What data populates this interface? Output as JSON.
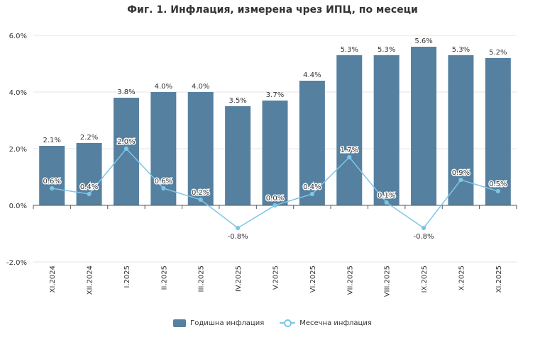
{
  "title": "Фиг. 1. Инфлация, измерена чрез ИПЦ, по месеци",
  "legend": {
    "bar_label": "Годишна инфлация",
    "line_label": "Месечна инфлация"
  },
  "colors": {
    "bar": "#56809f",
    "line": "#7cc6e8",
    "grid": "#e6e6e6",
    "axis": "#555555",
    "text": "#333333"
  },
  "chart_data": {
    "type": "bar",
    "title": "Фиг. 1. Инфлация, измерена чрез ИПЦ, по месеци",
    "categories": [
      "XI.2024",
      "XII.2024",
      "I.2025",
      "II.2025",
      "III.2025",
      "IV.2025",
      "V.2025",
      "VI.2025",
      "VII.2025",
      "VIII.2025",
      "IX.2025",
      "X.2025",
      "XI.2025"
    ],
    "series": [
      {
        "name": "Годишна инфлация",
        "type": "bar",
        "values": [
          2.1,
          2.2,
          3.8,
          4.0,
          4.0,
          3.5,
          3.7,
          4.4,
          5.3,
          5.3,
          5.6,
          5.3,
          5.2
        ]
      },
      {
        "name": "Месечна инфлация",
        "type": "line",
        "values": [
          0.6,
          0.4,
          2.0,
          0.6,
          0.2,
          -0.8,
          0.0,
          0.4,
          1.7,
          0.1,
          -0.8,
          0.9,
          0.5
        ]
      }
    ],
    "ylim": [
      -2.0,
      6.0
    ],
    "yticks": [
      "6.0%",
      "4.0%",
      "2.0%",
      "0.0%",
      "-2.0%"
    ],
    "ytick_values": [
      6,
      4,
      2,
      0,
      -2
    ],
    "grid": true,
    "legend_position": "bottom-center"
  }
}
